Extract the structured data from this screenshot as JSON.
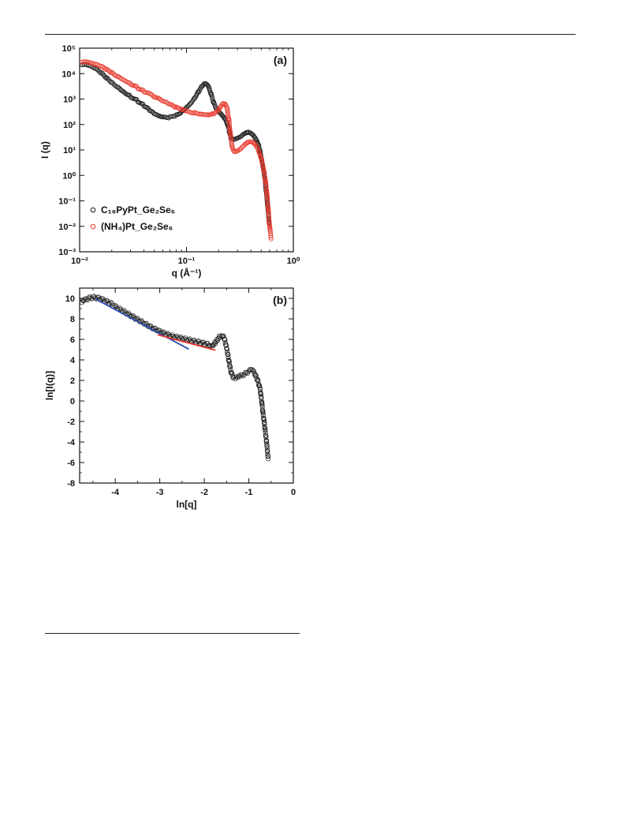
{
  "chart_data": [
    {
      "type": "scatter",
      "panel_label": "(a)",
      "xlabel": "q (Å⁻¹)",
      "ylabel": "I (q)",
      "xscale": "log",
      "yscale": "log",
      "xlim": [
        0.01,
        1
      ],
      "ylim": [
        0.001,
        100000
      ],
      "x_ticks": [
        "10⁻²",
        "10⁻¹",
        "10⁰"
      ],
      "y_ticks": [
        "10⁻³",
        "10⁻²",
        "10⁻¹",
        "10⁰",
        "10¹",
        "10²",
        "10³",
        "10⁴",
        "10⁵"
      ],
      "legend_position": "lower-left",
      "series": [
        {
          "name": "C₁₈PyPt_Ge₂Se₆",
          "color": "#1a1a1a",
          "points": [
            [
              0.0105,
              22000
            ],
            [
              0.012,
              20000
            ],
            [
              0.014,
              15000
            ],
            [
              0.016,
              10000
            ],
            [
              0.018,
              6500
            ],
            [
              0.02,
              4500
            ],
            [
              0.023,
              3000
            ],
            [
              0.026,
              2000
            ],
            [
              0.03,
              1300
            ],
            [
              0.035,
              850
            ],
            [
              0.04,
              550
            ],
            [
              0.045,
              360
            ],
            [
              0.05,
              250
            ],
            [
              0.055,
              200
            ],
            [
              0.06,
              180
            ],
            [
              0.07,
              190
            ],
            [
              0.08,
              230
            ],
            [
              0.09,
              330
            ],
            [
              0.1,
              500
            ],
            [
              0.11,
              750
            ],
            [
              0.12,
              1200
            ],
            [
              0.13,
              2000
            ],
            [
              0.14,
              3200
            ],
            [
              0.15,
              4000
            ],
            [
              0.16,
              3000
            ],
            [
              0.17,
              1500
            ],
            [
              0.18,
              700
            ],
            [
              0.19,
              420
            ],
            [
              0.2,
              330
            ],
            [
              0.21,
              280
            ],
            [
              0.22,
              230
            ],
            [
              0.235,
              150
            ],
            [
              0.25,
              60
            ],
            [
              0.26,
              28
            ],
            [
              0.28,
              25
            ],
            [
              0.3,
              27
            ],
            [
              0.32,
              30
            ],
            [
              0.34,
              38
            ],
            [
              0.36,
              45
            ],
            [
              0.38,
              50
            ],
            [
              0.4,
              48
            ],
            [
              0.42,
              42
            ],
            [
              0.44,
              32
            ],
            [
              0.46,
              22
            ],
            [
              0.48,
              12
            ],
            [
              0.5,
              5
            ],
            [
              0.52,
              2
            ],
            [
              0.54,
              0.8
            ],
            [
              0.56,
              0.2
            ],
            [
              0.58,
              0.04
            ],
            [
              0.6,
              0.01
            ]
          ]
        },
        {
          "name": "(NH₄)Pt_Ge₂Se₆",
          "color": "#e8382c",
          "points": [
            [
              0.0105,
              28000
            ],
            [
              0.012,
              26000
            ],
            [
              0.014,
              22000
            ],
            [
              0.016,
              18000
            ],
            [
              0.018,
              14000
            ],
            [
              0.02,
              11000
            ],
            [
              0.023,
              8000
            ],
            [
              0.026,
              6000
            ],
            [
              0.03,
              4200
            ],
            [
              0.035,
              2800
            ],
            [
              0.04,
              2000
            ],
            [
              0.05,
              1200
            ],
            [
              0.06,
              800
            ],
            [
              0.07,
              580
            ],
            [
              0.08,
              450
            ],
            [
              0.09,
              380
            ],
            [
              0.1,
              340
            ],
            [
              0.12,
              300
            ],
            [
              0.14,
              270
            ],
            [
              0.16,
              260
            ],
            [
              0.18,
              280
            ],
            [
              0.2,
              380
            ],
            [
              0.21,
              520
            ],
            [
              0.22,
              650
            ],
            [
              0.23,
              600
            ],
            [
              0.24,
              400
            ],
            [
              0.25,
              150
            ],
            [
              0.26,
              30
            ],
            [
              0.27,
              12
            ],
            [
              0.28,
              9
            ],
            [
              0.3,
              10
            ],
            [
              0.32,
              12
            ],
            [
              0.34,
              15
            ],
            [
              0.36,
              18
            ],
            [
              0.38,
              20
            ],
            [
              0.4,
              20
            ],
            [
              0.42,
              18
            ],
            [
              0.44,
              15
            ],
            [
              0.46,
              12
            ],
            [
              0.48,
              8
            ],
            [
              0.5,
              5
            ],
            [
              0.52,
              2.5
            ],
            [
              0.54,
              1
            ],
            [
              0.56,
              0.3
            ],
            [
              0.58,
              0.06
            ],
            [
              0.6,
              0.01
            ],
            [
              0.62,
              0.003
            ]
          ]
        }
      ]
    },
    {
      "type": "scatter",
      "panel_label": "(b)",
      "xlabel": "ln[q]",
      "ylabel": "ln[I(q)]",
      "xlim": [
        -4.8,
        0
      ],
      "ylim": [
        -8,
        11
      ],
      "x_ticks": [
        "-4",
        "-3",
        "-2",
        "-1",
        "0"
      ],
      "y_ticks": [
        "-8",
        "-6",
        "-4",
        "-2",
        "0",
        "2",
        "4",
        "6",
        "8",
        "10"
      ],
      "series": [
        {
          "color": "#1a1a1a",
          "points": [
            [
              -4.75,
              9.6
            ],
            [
              -4.7,
              9.8
            ],
            [
              -4.6,
              10
            ],
            [
              -4.5,
              10.1
            ],
            [
              -4.4,
              10.05
            ],
            [
              -4.3,
              9.9
            ],
            [
              -4.2,
              9.7
            ],
            [
              -4.1,
              9.5
            ],
            [
              -4,
              9.2
            ],
            [
              -3.9,
              8.95
            ],
            [
              -3.8,
              8.7
            ],
            [
              -3.7,
              8.45
            ],
            [
              -3.6,
              8.2
            ],
            [
              -3.5,
              7.95
            ],
            [
              -3.4,
              7.7
            ],
            [
              -3.3,
              7.45
            ],
            [
              -3.2,
              7.2
            ],
            [
              -3.1,
              7
            ],
            [
              -3,
              6.8
            ],
            [
              -2.9,
              6.6
            ],
            [
              -2.8,
              6.45
            ],
            [
              -2.7,
              6.3
            ],
            [
              -2.6,
              6.2
            ],
            [
              -2.5,
              6.1
            ],
            [
              -2.4,
              6
            ],
            [
              -2.3,
              5.9
            ],
            [
              -2.2,
              5.8
            ],
            [
              -2.1,
              5.7
            ],
            [
              -2,
              5.6
            ],
            [
              -1.9,
              5.5
            ],
            [
              -1.85,
              5.45
            ],
            [
              -1.8,
              5.5
            ],
            [
              -1.75,
              5.7
            ],
            [
              -1.7,
              6
            ],
            [
              -1.65,
              6.3
            ],
            [
              -1.6,
              6.4
            ],
            [
              -1.55,
              6.1
            ],
            [
              -1.5,
              5.2
            ],
            [
              -1.45,
              4
            ],
            [
              -1.4,
              2.8
            ],
            [
              -1.35,
              2.3
            ],
            [
              -1.3,
              2.2
            ],
            [
              -1.25,
              2.3
            ],
            [
              -1.2,
              2.4
            ],
            [
              -1.1,
              2.6
            ],
            [
              -1,
              2.9
            ],
            [
              -0.95,
              3
            ],
            [
              -0.9,
              2.9
            ],
            [
              -0.85,
              2.5
            ],
            [
              -0.8,
              2
            ],
            [
              -0.75,
              1.2
            ],
            [
              -0.72,
              0.3
            ],
            [
              -0.7,
              -0.5
            ],
            [
              -0.68,
              -1.3
            ],
            [
              -0.65,
              -2.2
            ],
            [
              -0.63,
              -3
            ],
            [
              -0.6,
              -4
            ],
            [
              -0.58,
              -5
            ],
            [
              -0.56,
              -5.8
            ]
          ]
        }
      ],
      "fit_lines": [
        {
          "color": "#2b4db3",
          "x": [
            -4.45,
            -2.35
          ],
          "y": [
            9.95,
            5.05
          ]
        },
        {
          "color": "#e8382c",
          "x": [
            -3.05,
            -1.75
          ],
          "y": [
            6.45,
            4.95
          ]
        }
      ]
    }
  ]
}
